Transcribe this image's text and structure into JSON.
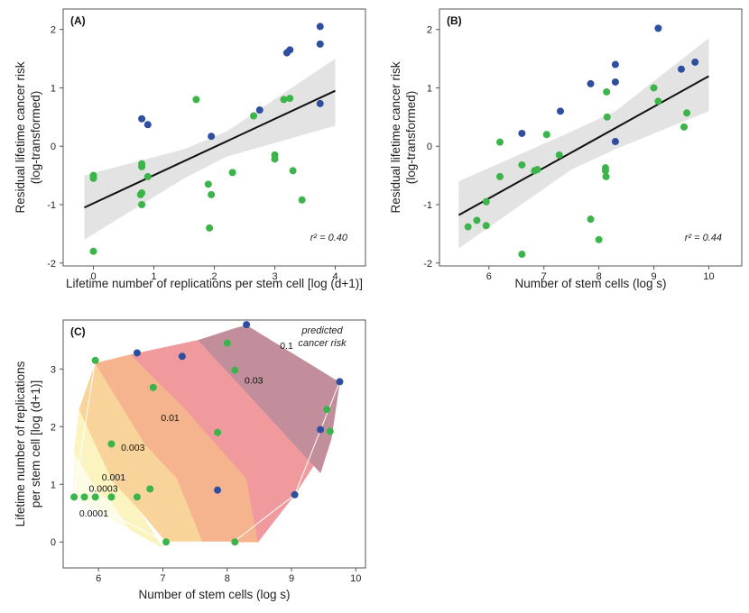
{
  "colors": {
    "blue": "#2e4fa0",
    "green": "#3bb54a",
    "band": "#e3e3e3",
    "fit": "#111111",
    "regions": [
      "#fbfbe6",
      "#fbf3c0",
      "#f8d49a",
      "#f5b48e",
      "#f19a9e",
      "#c28e9c"
    ]
  },
  "chart_data": [
    {
      "id": "A",
      "type": "scatter",
      "panel_label": "(A)",
      "xlabel": "Lifetime number of replications per stem cell [log (d+1)]",
      "ylabel_lines": [
        "Residual lifetime cancer risk",
        "(log-transformed)"
      ],
      "xlim": [
        -0.5,
        4.5
      ],
      "ylim": [
        -2.05,
        2.35
      ],
      "xticks": [
        0,
        1,
        2,
        3,
        4
      ],
      "yticks": [
        -2,
        -1,
        0,
        1,
        2
      ],
      "r2_label": "r² = 0.40",
      "fit": {
        "x": [
          -0.15,
          4.0
        ],
        "y": [
          -1.05,
          0.95
        ]
      },
      "band": {
        "x": [
          -0.15,
          1.5,
          2.2,
          4.0
        ],
        "lower": [
          -1.6,
          -0.55,
          -0.18,
          0.35
        ],
        "upper": [
          -0.5,
          -0.05,
          0.25,
          1.5
        ]
      },
      "series": [
        {
          "name": "blue",
          "color": "#2e4fa0",
          "x": [
            0.8,
            0.9,
            1.95,
            2.75,
            3.2,
            3.25,
            3.75,
            3.75,
            3.75
          ],
          "y": [
            0.47,
            0.37,
            0.17,
            0.62,
            1.6,
            1.65,
            2.05,
            1.75,
            0.73
          ]
        },
        {
          "name": "green",
          "color": "#3bb54a",
          "x": [
            0,
            0,
            0,
            0.8,
            0.8,
            0.8,
            0.78,
            0.8,
            0.9,
            1.7,
            1.9,
            1.92,
            1.95,
            2.3,
            2.65,
            3.0,
            3.0,
            3.15,
            3.25,
            3.3,
            3.45
          ],
          "y": [
            -0.5,
            -0.55,
            -1.8,
            -0.3,
            -0.35,
            -0.8,
            -0.83,
            -1.0,
            -0.52,
            0.8,
            -0.65,
            -1.4,
            -0.83,
            -0.45,
            0.52,
            -0.15,
            -0.22,
            0.8,
            0.82,
            -0.42,
            -0.92
          ]
        }
      ]
    },
    {
      "id": "B",
      "type": "scatter",
      "panel_label": "(B)",
      "xlabel": "Number of stem cells (log s)",
      "ylabel_lines": [
        "Residual lifetime cancer risk",
        "(log-transformed)"
      ],
      "xlim": [
        5.1,
        10.6
      ],
      "ylim": [
        -2.05,
        2.35
      ],
      "xticks": [
        6,
        7,
        8,
        9,
        10
      ],
      "yticks": [
        -2,
        -1,
        0,
        1,
        2
      ],
      "r2_label": "r² = 0.44",
      "fit": {
        "x": [
          5.45,
          10.0
        ],
        "y": [
          -1.18,
          1.2
        ]
      },
      "band": {
        "x": [
          5.45,
          7.5,
          8.3,
          10.0
        ],
        "lower": [
          -1.75,
          -0.4,
          -0.05,
          0.6
        ],
        "upper": [
          -0.6,
          0.25,
          0.6,
          1.85
        ]
      },
      "series": [
        {
          "name": "blue",
          "color": "#2e4fa0",
          "x": [
            6.6,
            7.3,
            7.85,
            8.3,
            8.3,
            8.3,
            9.08,
            9.5,
            9.75
          ],
          "y": [
            0.22,
            0.6,
            1.07,
            1.4,
            1.1,
            0.08,
            2.02,
            1.32,
            1.44
          ]
        },
        {
          "name": "green",
          "color": "#3bb54a",
          "x": [
            5.62,
            5.78,
            5.95,
            5.95,
            6.2,
            6.2,
            6.6,
            6.6,
            6.83,
            6.88,
            7.05,
            7.28,
            7.85,
            8.0,
            8.12,
            8.12,
            8.13,
            8.14,
            8.15,
            9.0,
            9.08,
            9.55,
            9.6
          ],
          "y": [
            -1.38,
            -1.27,
            -1.36,
            -0.95,
            0.07,
            -0.52,
            -0.32,
            -1.85,
            -0.42,
            -0.4,
            0.2,
            -0.15,
            -1.25,
            -1.6,
            -0.37,
            -0.42,
            -0.52,
            0.93,
            0.5,
            1.0,
            0.77,
            0.33,
            0.57
          ]
        }
      ]
    },
    {
      "id": "C",
      "type": "scatter",
      "panel_label": "(C)",
      "xlabel": "Number of stem cells (log s)",
      "ylabel_lines": [
        "Lifetime number of replications",
        "per stem cell [log (d+1)]"
      ],
      "xlim": [
        5.45,
        10.15
      ],
      "ylim": [
        -0.45,
        3.85
      ],
      "xticks": [
        6,
        7,
        8,
        9,
        10
      ],
      "yticks": [
        0,
        1,
        2,
        3
      ],
      "legend_note_lines": [
        "predicted",
        "cancer risk"
      ],
      "hull": [
        [
          5.62,
          0.8
        ],
        [
          5.95,
          3.15
        ],
        [
          6.6,
          3.28
        ],
        [
          8.3,
          3.77
        ],
        [
          9.75,
          2.78
        ],
        [
          9.05,
          0.82
        ],
        [
          8.1,
          0
        ],
        [
          7.05,
          0
        ],
        [
          5.62,
          0.8
        ]
      ],
      "regions": [
        {
          "risk": "<0.0001",
          "poly": [
            [
              5.6,
              0.78
            ],
            [
              5.62,
              1.55
            ],
            [
              6.0,
              0.85
            ],
            [
              6.2,
              0.7
            ],
            [
              6.52,
              0.3
            ],
            [
              6.5,
              0.2
            ]
          ]
        },
        {
          "risk": "0.0001-0.0003",
          "poly": [
            [
              5.62,
              1.55
            ],
            [
              5.7,
              2.3
            ],
            [
              6.22,
              1.05
            ],
            [
              6.6,
              0.6
            ],
            [
              7.0,
              -0.1
            ],
            [
              6.5,
              0.2
            ],
            [
              6.2,
              0.7
            ],
            [
              6.0,
              0.85
            ]
          ]
        },
        {
          "risk": "0.0003-0.001",
          "poly": [
            [
              5.7,
              2.3
            ],
            [
              5.95,
              3.1
            ],
            [
              6.72,
              1.7
            ],
            [
              7.22,
              1.1
            ],
            [
              7.62,
              0
            ],
            [
              7.05,
              0
            ],
            [
              6.6,
              0.6
            ],
            [
              6.22,
              1.05
            ]
          ]
        },
        {
          "risk": "0.001-0.003",
          "poly": [
            [
              5.95,
              3.1
            ],
            [
              6.5,
              3.25
            ],
            [
              7.35,
              2.3
            ],
            [
              8.3,
              1.1
            ],
            [
              8.48,
              0
            ],
            [
              7.62,
              0
            ],
            [
              7.22,
              1.1
            ],
            [
              6.72,
              1.7
            ]
          ]
        },
        {
          "risk": "0.003-0.03",
          "poly": [
            [
              6.5,
              3.25
            ],
            [
              7.55,
              3.5
            ],
            [
              9.45,
              1.2
            ],
            [
              9.62,
              1.8
            ],
            [
              9.05,
              0.82
            ],
            [
              8.48,
              0
            ],
            [
              8.3,
              1.1
            ],
            [
              7.35,
              2.3
            ]
          ]
        },
        {
          "risk": ">0.03",
          "poly": [
            [
              7.55,
              3.5
            ],
            [
              8.3,
              3.77
            ],
            [
              9.75,
              2.78
            ],
            [
              9.62,
              1.8
            ],
            [
              9.45,
              1.2
            ]
          ]
        }
      ],
      "contour_labels": [
        {
          "text": "0.1",
          "x": 8.82,
          "y": 3.35
        },
        {
          "text": "0.03",
          "x": 8.27,
          "y": 2.75
        },
        {
          "text": "0.01",
          "x": 6.97,
          "y": 2.1
        },
        {
          "text": "0.003",
          "x": 6.35,
          "y": 1.58
        },
        {
          "text": "0.001",
          "x": 6.05,
          "y": 1.07
        },
        {
          "text": "0.0003",
          "x": 5.85,
          "y": 0.87
        },
        {
          "text": "0.0001",
          "x": 5.7,
          "y": 0.44
        }
      ],
      "series": [
        {
          "name": "blue",
          "color": "#2e4fa0",
          "x": [
            6.6,
            7.3,
            7.85,
            8.3,
            9.05,
            9.45,
            9.75
          ],
          "y": [
            3.28,
            3.22,
            0.9,
            3.77,
            0.82,
            1.95,
            2.78
          ]
        },
        {
          "name": "green",
          "color": "#3bb54a",
          "x": [
            5.62,
            5.78,
            5.95,
            5.95,
            6.2,
            6.2,
            6.6,
            6.8,
            6.85,
            7.05,
            7.85,
            8.0,
            8.12,
            8.12,
            9.55,
            9.6
          ],
          "y": [
            0.78,
            0.78,
            0.78,
            3.15,
            1.7,
            0.78,
            0.78,
            0.92,
            2.68,
            0.0,
            1.9,
            3.45,
            2.98,
            0.0,
            2.3,
            1.92
          ]
        }
      ]
    }
  ]
}
